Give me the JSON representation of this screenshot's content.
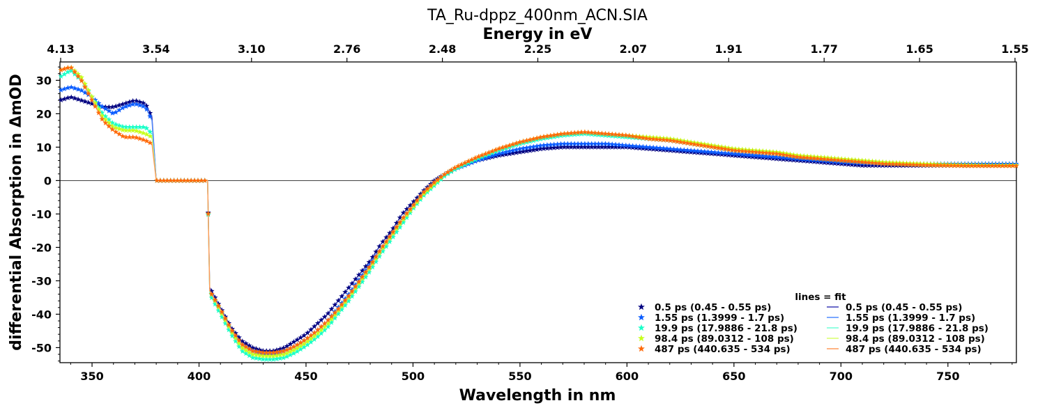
{
  "chart_data": {
    "type": "line",
    "title": "TA_Ru-dppz_400nm_ACN.SIA",
    "xlabel": "Wavelength in nm",
    "ylabel": "differential Absorption in ΔmOD",
    "top_xlabel": "Energy in eV",
    "xlim": [
      335,
      782
    ],
    "ylim": [
      -54.5,
      35.5
    ],
    "xticks": [
      350,
      400,
      450,
      500,
      550,
      600,
      650,
      700,
      750
    ],
    "yticks": [
      -50,
      -40,
      -30,
      -20,
      -10,
      0,
      10,
      20,
      30
    ],
    "top_ticks": [
      {
        "label": "4.13",
        "wavelength": 300.0
      },
      {
        "label": "3.54",
        "wavelength": 350.0
      },
      {
        "label": "3.10",
        "wavelength": 400.0
      },
      {
        "label": "2.76",
        "wavelength": 450.0
      },
      {
        "label": "2.48",
        "wavelength": 500.0
      },
      {
        "label": "2.25",
        "wavelength": 550.0
      },
      {
        "label": "2.07",
        "wavelength": 600.0
      },
      {
        "label": "1.91",
        "wavelength": 650.0
      },
      {
        "label": "1.77",
        "wavelength": 700.0
      },
      {
        "label": "1.65",
        "wavelength": 750.0
      },
      {
        "label": "1.55",
        "wavelength": 800.0
      }
    ],
    "zero_line": true,
    "grid": false,
    "legend_title": "lines = fit",
    "legend_position": "lower-right",
    "x": [
      335,
      340,
      345,
      350,
      355,
      360,
      365,
      370,
      375,
      378,
      380,
      390,
      400,
      404,
      405,
      410,
      415,
      420,
      425,
      430,
      435,
      440,
      445,
      450,
      455,
      460,
      465,
      470,
      475,
      480,
      485,
      490,
      495,
      500,
      505,
      510,
      515,
      520,
      530,
      540,
      550,
      560,
      570,
      580,
      590,
      600,
      610,
      620,
      630,
      640,
      650,
      660,
      670,
      680,
      690,
      700,
      710,
      720,
      730,
      740,
      750,
      760,
      770,
      782
    ],
    "series": [
      {
        "name": "0.5 ps (0.45 - 0.55 ps)",
        "color": "#000080",
        "values": [
          24,
          25,
          24,
          23,
          22,
          22,
          23,
          24,
          23,
          19,
          0,
          0,
          0,
          0,
          -32,
          -38,
          -44,
          -48,
          -50,
          -51,
          -51,
          -50,
          -48,
          -46,
          -43,
          -40,
          -36,
          -32,
          -28,
          -24,
          -19,
          -15,
          -10,
          -6.5,
          -3,
          0,
          2,
          3.5,
          6,
          7.5,
          8.5,
          9.5,
          10,
          10,
          10,
          10,
          9.5,
          9,
          8.5,
          8,
          7.5,
          7,
          6.5,
          6,
          5.5,
          5,
          4.5,
          4.5,
          4.5,
          4.5,
          4.5,
          4.5,
          4.5,
          4.5
        ]
      },
      {
        "name": "1.55 ps (1.3999 - 1.7 ps)",
        "color": "#0a5cff",
        "values": [
          27,
          28,
          27,
          25,
          22,
          20,
          22,
          23,
          22,
          18,
          0,
          0,
          0,
          0,
          -33,
          -39,
          -45,
          -49,
          -51,
          -52,
          -52,
          -51,
          -49.5,
          -47.5,
          -45,
          -42,
          -38,
          -34,
          -29.5,
          -25,
          -20.5,
          -16,
          -11.5,
          -7.5,
          -3.5,
          -0.5,
          2,
          3.5,
          6,
          8,
          9.5,
          10.5,
          11,
          11,
          11,
          10.5,
          10,
          9.5,
          9,
          8.5,
          8,
          7.5,
          7,
          6.5,
          6,
          5.5,
          5.2,
          5,
          5,
          5,
          5,
          5,
          5,
          5
        ]
      },
      {
        "name": "19.9 ps (17.9886 - 21.8 ps)",
        "color": "#18ffc8",
        "values": [
          31,
          33,
          30,
          25,
          20,
          17,
          16,
          16,
          16,
          14,
          0,
          0,
          0,
          0,
          -34,
          -40,
          -46,
          -51,
          -53,
          -53.5,
          -53.5,
          -53,
          -51.5,
          -49.5,
          -47,
          -44,
          -40,
          -36,
          -31.5,
          -27,
          -22,
          -17.5,
          -13,
          -8.5,
          -4.5,
          -1.5,
          1.5,
          3.5,
          6.5,
          9,
          11,
          12.5,
          13.5,
          14,
          13.5,
          13,
          12.5,
          12,
          11,
          10,
          9,
          8.5,
          8,
          7,
          6.5,
          6,
          5.5,
          5.2,
          5,
          4.8,
          4.7,
          4.6,
          4.6,
          4.6
        ]
      },
      {
        "name": "98.4 ps (89.0312 - 108 ps)",
        "color": "#c6ff1c",
        "values": [
          33,
          34,
          31,
          25,
          19,
          16,
          15,
          15,
          14,
          13,
          0,
          0,
          0,
          0,
          -33,
          -39,
          -45,
          -50,
          -52,
          -52.5,
          -52.5,
          -52,
          -50.5,
          -48.5,
          -46,
          -43,
          -39,
          -35,
          -30.5,
          -26,
          -21,
          -16.5,
          -12,
          -8,
          -4,
          -1,
          2,
          4,
          7,
          9.5,
          11.5,
          13,
          14,
          14.5,
          14,
          13.5,
          13,
          12.5,
          11.5,
          10.5,
          9.5,
          9,
          8.5,
          7.5,
          7,
          6.5,
          6,
          5.5,
          5.2,
          5,
          4.8,
          4.7,
          4.6,
          4.6
        ]
      },
      {
        "name": "487 ps (440.635 - 534 ps)",
        "color": "#ff6a0a",
        "values": [
          33,
          34,
          30,
          24,
          18,
          15,
          13,
          13,
          12,
          11,
          0,
          0,
          0,
          0,
          -33,
          -38.5,
          -44.5,
          -49,
          -51,
          -51.5,
          -51.5,
          -51,
          -49.5,
          -47.5,
          -45,
          -42,
          -38.5,
          -34.5,
          -30,
          -25.5,
          -20.5,
          -16,
          -11.5,
          -7.5,
          -3.5,
          -0.5,
          2,
          4,
          7,
          9.5,
          11.5,
          13,
          14,
          14.5,
          14,
          13.5,
          12.5,
          12,
          11,
          10,
          9,
          8.5,
          8,
          7,
          6.5,
          6,
          5.5,
          5,
          4.8,
          4.6,
          4.5,
          4.4,
          4.4,
          4.4
        ]
      }
    ],
    "fit_series": [
      {
        "name": "0.5 ps (0.45 - 0.55 ps)",
        "color": "#3a3ab5"
      },
      {
        "name": "1.55 ps (1.3999 - 1.7 ps)",
        "color": "#4f8cff"
      },
      {
        "name": "19.9 ps (17.9886 - 21.8 ps)",
        "color": "#6fffd8"
      },
      {
        "name": "98.4 ps (89.0312 - 108 ps)",
        "color": "#d8ff6a"
      },
      {
        "name": "487 ps (440.635 - 534 ps)",
        "color": "#ff9a5a"
      }
    ]
  }
}
